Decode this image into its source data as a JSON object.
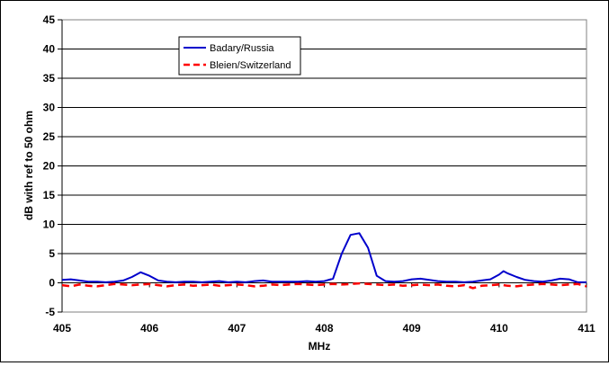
{
  "chart_data": {
    "type": "line",
    "title": "",
    "xlabel": "MHz",
    "ylabel": "dB with ref to 50 ohm",
    "xlim": [
      405,
      411
    ],
    "ylim": [
      -5,
      45
    ],
    "x_ticks": [
      405,
      406,
      407,
      408,
      409,
      410,
      411
    ],
    "y_ticks": [
      -5,
      0,
      5,
      10,
      15,
      20,
      25,
      30,
      35,
      40,
      45
    ],
    "grid": "horizontal",
    "legend_position": "top-left",
    "series": [
      {
        "name": "Badary/Russia",
        "color": "#0000cc",
        "style": "solid",
        "x": [
          405.0,
          405.1,
          405.2,
          405.3,
          405.4,
          405.5,
          405.6,
          405.7,
          405.8,
          405.9,
          406.0,
          406.1,
          406.2,
          406.3,
          406.4,
          406.5,
          406.6,
          406.7,
          406.8,
          406.9,
          407.0,
          407.1,
          407.2,
          407.3,
          407.4,
          407.5,
          407.6,
          407.7,
          407.8,
          407.9,
          408.0,
          408.1,
          408.2,
          408.3,
          408.4,
          408.5,
          408.6,
          408.7,
          408.8,
          408.9,
          409.0,
          409.1,
          409.2,
          409.3,
          409.4,
          409.5,
          409.6,
          409.7,
          409.8,
          409.9,
          410.0,
          410.05,
          410.1,
          410.2,
          410.3,
          410.4,
          410.5,
          410.6,
          410.7,
          410.8,
          410.9,
          411.0
        ],
        "y": [
          0.5,
          0.6,
          0.4,
          0.2,
          0.2,
          0.1,
          0.2,
          0.4,
          1.0,
          1.8,
          1.2,
          0.4,
          0.2,
          0.1,
          0.2,
          0.2,
          0.1,
          0.2,
          0.3,
          0.1,
          0.2,
          0.1,
          0.3,
          0.4,
          0.2,
          0.2,
          0.2,
          0.2,
          0.3,
          0.2,
          0.3,
          0.7,
          5.0,
          8.2,
          8.5,
          6.0,
          1.2,
          0.3,
          0.2,
          0.3,
          0.6,
          0.7,
          0.5,
          0.3,
          0.2,
          0.2,
          0.1,
          0.2,
          0.4,
          0.6,
          1.4,
          2.0,
          1.6,
          1.0,
          0.5,
          0.3,
          0.2,
          0.4,
          0.7,
          0.6,
          0.1,
          0.1
        ]
      },
      {
        "name": "Bleien/Switzerland",
        "color": "#ff0000",
        "style": "dashed",
        "x": [
          405.0,
          405.1,
          405.2,
          405.3,
          405.4,
          405.5,
          405.6,
          405.7,
          405.8,
          405.9,
          406.0,
          406.1,
          406.2,
          406.3,
          406.4,
          406.5,
          406.6,
          406.7,
          406.8,
          406.9,
          407.0,
          407.1,
          407.2,
          407.3,
          407.4,
          407.5,
          407.6,
          407.7,
          407.8,
          407.9,
          408.0,
          408.1,
          408.2,
          408.3,
          408.4,
          408.5,
          408.6,
          408.7,
          408.8,
          408.9,
          409.0,
          409.1,
          409.2,
          409.3,
          409.4,
          409.5,
          409.6,
          409.7,
          409.8,
          409.9,
          410.0,
          410.1,
          410.2,
          410.3,
          410.4,
          410.5,
          410.6,
          410.7,
          410.8,
          410.9,
          411.0
        ],
        "y": [
          -0.4,
          -0.6,
          -0.3,
          -0.5,
          -0.6,
          -0.4,
          -0.2,
          -0.3,
          -0.4,
          -0.3,
          -0.2,
          -0.4,
          -0.6,
          -0.4,
          -0.3,
          -0.5,
          -0.4,
          -0.3,
          -0.5,
          -0.4,
          -0.3,
          -0.4,
          -0.6,
          -0.5,
          -0.3,
          -0.4,
          -0.3,
          -0.2,
          -0.3,
          -0.4,
          -0.3,
          -0.2,
          -0.3,
          -0.2,
          -0.1,
          -0.2,
          -0.3,
          -0.4,
          -0.3,
          -0.5,
          -0.4,
          -0.3,
          -0.4,
          -0.3,
          -0.5,
          -0.6,
          -0.4,
          -0.9,
          -0.5,
          -0.4,
          -0.3,
          -0.5,
          -0.6,
          -0.4,
          -0.3,
          -0.2,
          -0.3,
          -0.4,
          -0.3,
          -0.2,
          -0.6
        ]
      }
    ]
  }
}
